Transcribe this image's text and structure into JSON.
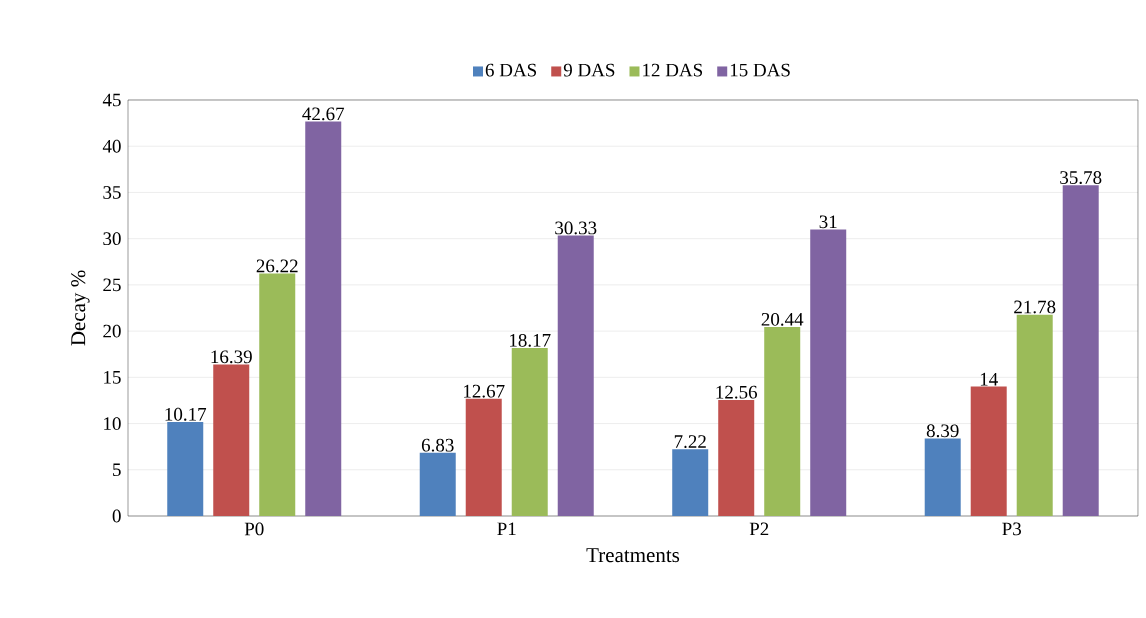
{
  "chart_data": {
    "type": "bar",
    "xlabel": "Treatments",
    "ylabel": "Decay %",
    "categories": [
      "P0",
      "P1",
      "P2",
      "P3"
    ],
    "series": [
      {
        "name": "6 DAS",
        "color": "#4f81bd",
        "values": [
          10.17,
          6.83,
          7.22,
          8.39
        ]
      },
      {
        "name": "9 DAS",
        "color": "#c0504d",
        "values": [
          16.39,
          12.67,
          12.56,
          14
        ]
      },
      {
        "name": "12 DAS",
        "color": "#9bbb59",
        "values": [
          26.22,
          18.17,
          20.44,
          21.78
        ]
      },
      {
        "name": "15 DAS",
        "color": "#8064a2",
        "values": [
          42.67,
          30.33,
          31,
          35.78
        ]
      }
    ],
    "ylim": [
      0,
      45
    ],
    "yticks": [
      0,
      5,
      10,
      15,
      20,
      25,
      30,
      35,
      40,
      45
    ],
    "grid": "y",
    "legend": "top",
    "data_labels": true
  }
}
